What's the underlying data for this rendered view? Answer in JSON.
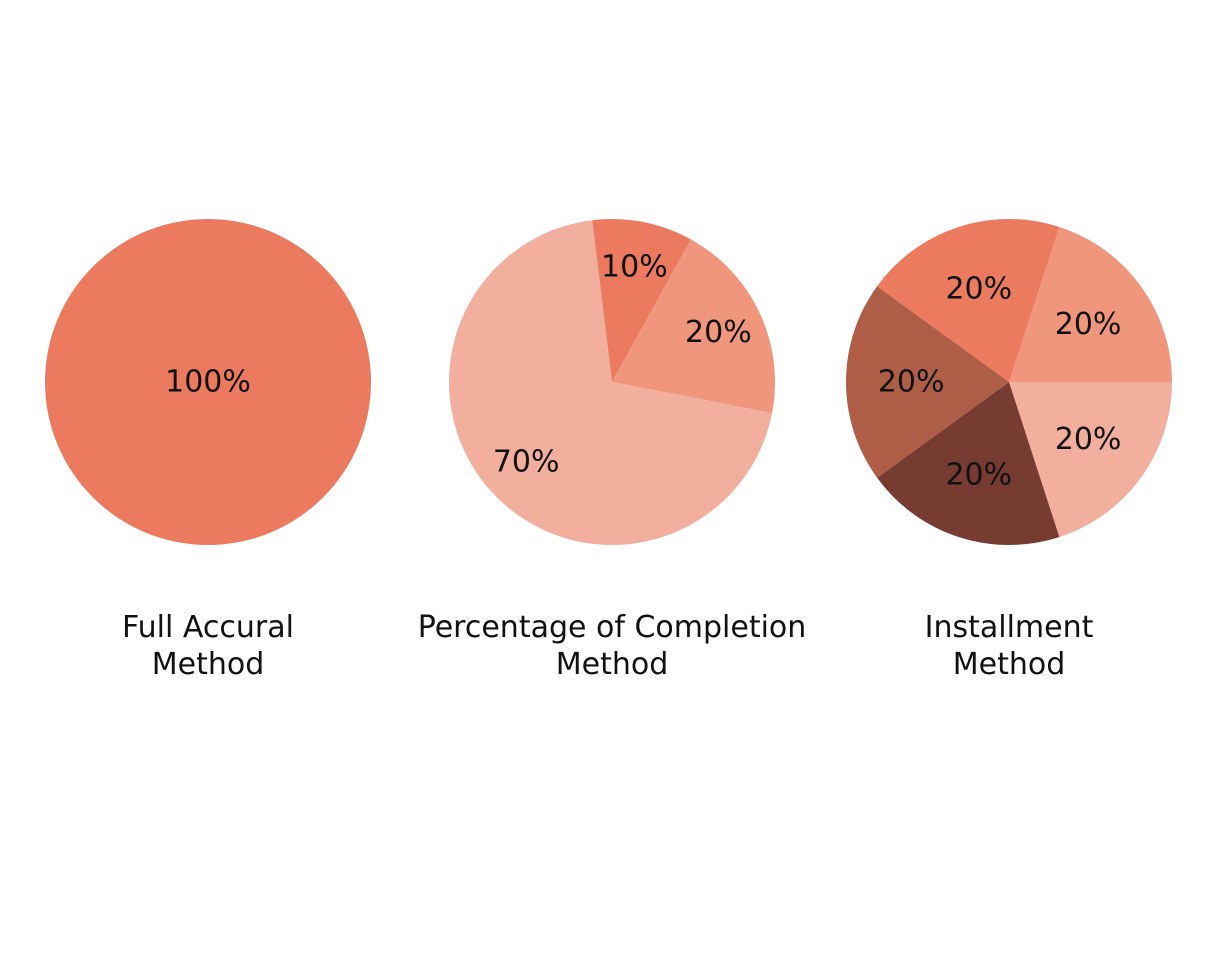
{
  "chart_data": [
    {
      "type": "pie",
      "title_lines": [
        "Full Accural",
        "Method"
      ],
      "slices": [
        {
          "label": "100%",
          "value": 100,
          "color": "#EB7A5E"
        }
      ]
    },
    {
      "type": "pie",
      "title_lines": [
        "Percentage of Completion",
        "Method"
      ],
      "slices": [
        {
          "label": "10%",
          "value": 10,
          "color": "#EB7A5E"
        },
        {
          "label": "20%",
          "value": 20,
          "color": "#EF967C"
        },
        {
          "label": "70%",
          "value": 70,
          "color": "#F2AF9D"
        }
      ]
    },
    {
      "type": "pie",
      "title_lines": [
        "Installment",
        "Method"
      ],
      "slices": [
        {
          "label": "20%",
          "value": 20,
          "color": "#EF967C"
        },
        {
          "label": "20%",
          "value": 20,
          "color": "#F2AF9D"
        },
        {
          "label": "20%",
          "value": 20,
          "color": "#773C31"
        },
        {
          "label": "20%",
          "value": 20,
          "color": "#AE5E47"
        },
        {
          "label": "20%",
          "value": 20,
          "color": "#EB7A5E"
        }
      ]
    }
  ]
}
